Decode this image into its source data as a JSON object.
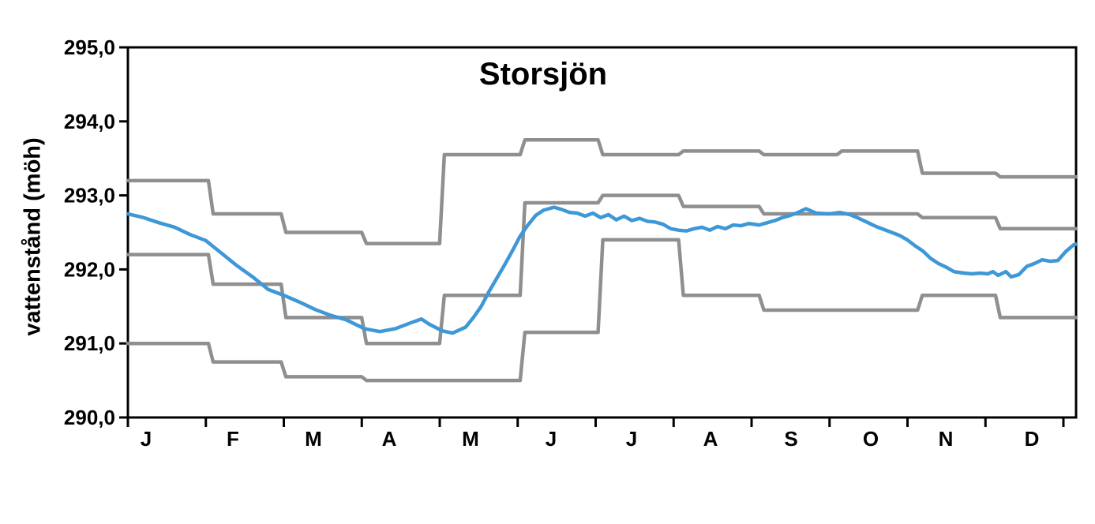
{
  "chart_data": {
    "type": "line",
    "title": "Storsjön",
    "ylabel": "vattenstånd (möh)",
    "xlabel": "",
    "ylim": [
      290.0,
      295.0
    ],
    "y_ticks": [
      295.0,
      294.0,
      293.0,
      292.0,
      291.0,
      290.0
    ],
    "y_tick_labels": [
      "295,0",
      "294,0",
      "293,0",
      "292,0",
      "291,0",
      "290,0"
    ],
    "month_labels": [
      "J",
      "F",
      "M",
      "A",
      "M",
      "J",
      "J",
      "A",
      "S",
      "O",
      "N",
      "D"
    ],
    "x_range_days": 365,
    "month_start_days": [
      0,
      31,
      59,
      90,
      120,
      151,
      181,
      212,
      243,
      273,
      304,
      334,
      365
    ],
    "legend": "none",
    "grid": false,
    "step_series": [
      {
        "name": "upper-band",
        "monthly_values": [
          293.2,
          292.75,
          292.5,
          292.35,
          293.55,
          293.75,
          293.55,
          293.6,
          293.55,
          293.6,
          293.3,
          293.25
        ]
      },
      {
        "name": "middle-band",
        "monthly_values": [
          292.2,
          291.8,
          291.35,
          291.0,
          291.65,
          292.9,
          293.0,
          292.85,
          292.75,
          292.75,
          292.7,
          292.55
        ]
      },
      {
        "name": "lower-band",
        "monthly_values": [
          291.0,
          290.75,
          290.55,
          290.5,
          290.5,
          291.15,
          292.4,
          291.65,
          291.45,
          291.45,
          291.65,
          291.35
        ]
      }
    ],
    "line_series": {
      "name": "water-level",
      "points": [
        [
          0,
          292.75
        ],
        [
          6,
          292.7
        ],
        [
          12,
          292.63
        ],
        [
          18,
          292.57
        ],
        [
          24,
          292.47
        ],
        [
          30,
          292.39
        ],
        [
          36,
          292.22
        ],
        [
          42,
          292.05
        ],
        [
          48,
          291.9
        ],
        [
          54,
          291.73
        ],
        [
          60,
          291.65
        ],
        [
          66,
          291.56
        ],
        [
          72,
          291.46
        ],
        [
          78,
          291.38
        ],
        [
          84,
          291.32
        ],
        [
          91,
          291.2
        ],
        [
          97,
          291.16
        ],
        [
          103,
          291.2
        ],
        [
          109,
          291.28
        ],
        [
          113,
          291.33
        ],
        [
          116,
          291.26
        ],
        [
          121,
          291.17
        ],
        [
          125,
          291.14
        ],
        [
          130,
          291.22
        ],
        [
          133,
          291.35
        ],
        [
          136,
          291.5
        ],
        [
          139,
          291.7
        ],
        [
          142,
          291.88
        ],
        [
          145,
          292.06
        ],
        [
          148,
          292.25
        ],
        [
          151,
          292.45
        ],
        [
          154,
          292.6
        ],
        [
          157,
          292.73
        ],
        [
          160,
          292.8
        ],
        [
          164,
          292.84
        ],
        [
          167,
          292.81
        ],
        [
          170,
          292.77
        ],
        [
          173,
          292.76
        ],
        [
          176,
          292.72
        ],
        [
          179,
          292.76
        ],
        [
          182,
          292.7
        ],
        [
          185,
          292.74
        ],
        [
          188,
          292.67
        ],
        [
          191,
          292.72
        ],
        [
          194,
          292.66
        ],
        [
          197,
          292.69
        ],
        [
          200,
          292.65
        ],
        [
          203,
          292.64
        ],
        [
          206,
          292.61
        ],
        [
          209,
          292.55
        ],
        [
          212,
          292.53
        ],
        [
          215,
          292.52
        ],
        [
          218,
          292.55
        ],
        [
          221,
          292.57
        ],
        [
          224,
          292.53
        ],
        [
          227,
          292.58
        ],
        [
          230,
          292.55
        ],
        [
          233,
          292.6
        ],
        [
          236,
          292.59
        ],
        [
          239,
          292.62
        ],
        [
          243,
          292.6
        ],
        [
          246,
          292.63
        ],
        [
          249,
          292.66
        ],
        [
          252,
          292.7
        ],
        [
          255,
          292.73
        ],
        [
          258,
          292.77
        ],
        [
          261,
          292.82
        ],
        [
          265,
          292.76
        ],
        [
          270,
          292.75
        ],
        [
          274,
          292.77
        ],
        [
          278,
          292.74
        ],
        [
          282,
          292.68
        ],
        [
          285,
          292.63
        ],
        [
          288,
          292.58
        ],
        [
          291,
          292.54
        ],
        [
          294,
          292.5
        ],
        [
          297,
          292.46
        ],
        [
          300,
          292.4
        ],
        [
          303,
          292.32
        ],
        [
          306,
          292.25
        ],
        [
          309,
          292.15
        ],
        [
          312,
          292.08
        ],
        [
          315,
          292.03
        ],
        [
          318,
          291.97
        ],
        [
          322,
          291.95
        ],
        [
          325,
          291.94
        ],
        [
          328,
          291.95
        ],
        [
          331,
          291.94
        ],
        [
          333,
          291.97
        ],
        [
          335,
          291.92
        ],
        [
          338,
          291.97
        ],
        [
          340,
          291.9
        ],
        [
          343,
          291.93
        ],
        [
          346,
          292.04
        ],
        [
          349,
          292.08
        ],
        [
          352,
          292.13
        ],
        [
          355,
          292.11
        ],
        [
          358,
          292.12
        ],
        [
          361,
          292.24
        ],
        [
          364,
          292.33
        ],
        [
          365,
          292.34
        ]
      ]
    },
    "colors": {
      "band": "#8f8f8f",
      "level": "#3e97d6",
      "axis": "#000000",
      "background": "#ffffff"
    }
  }
}
